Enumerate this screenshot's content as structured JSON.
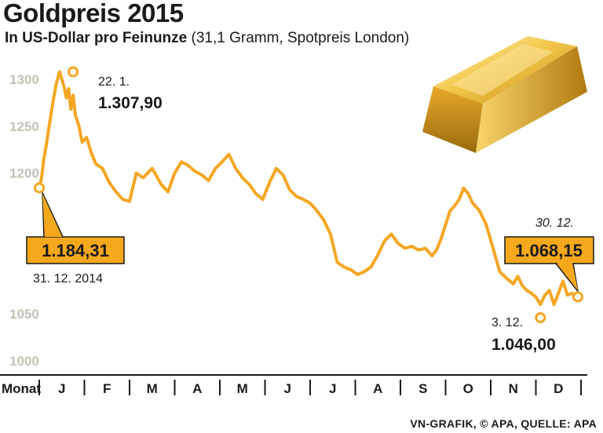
{
  "title": "Goldpreis 2015",
  "subtitle_bold": "In US-Dollar pro Feinunze",
  "subtitle_rest": "(31,1 Gramm, Spotpreis London)",
  "source": "VN-GRAFIK, © APA, QUELLE: APA",
  "colors": {
    "line": "#f5a623",
    "box": "#f6a81c",
    "text": "#1a1a1a",
    "grid": "#c3c3b4"
  },
  "chart_data": {
    "type": "line",
    "title": "Goldpreis 2015",
    "ylabel": "US-Dollar pro Feinunze",
    "xlabel": "Monat",
    "x_axis_label": "Monat",
    "ylim": [
      1000,
      1320
    ],
    "yticks": [
      1000,
      1050,
      1200,
      1250,
      1300
    ],
    "categories": [
      "J",
      "F",
      "M",
      "A",
      "M",
      "J",
      "J",
      "A",
      "S",
      "O",
      "N",
      "D"
    ],
    "series": [
      {
        "name": "Goldpreis",
        "x": [
          0,
          0.05,
          0.1,
          0.15,
          0.22,
          0.3,
          0.38,
          0.45,
          0.55,
          0.6,
          0.65,
          0.7,
          0.75,
          0.8,
          0.88,
          0.95,
          1.05,
          1.15,
          1.25,
          1.4,
          1.55,
          1.7,
          1.85,
          2.0,
          2.15,
          2.3,
          2.5,
          2.7,
          2.85,
          3.0,
          3.15,
          3.3,
          3.45,
          3.6,
          3.75,
          3.9,
          4.05,
          4.2,
          4.35,
          4.5,
          4.65,
          4.8,
          4.95,
          5.1,
          5.25,
          5.4,
          5.55,
          5.7,
          5.85,
          6.0,
          6.15,
          6.3,
          6.45,
          6.6,
          6.75,
          6.9,
          7.05,
          7.2,
          7.35,
          7.5,
          7.65,
          7.8,
          7.95,
          8.1,
          8.25,
          8.4,
          8.55,
          8.7,
          8.8,
          8.9,
          9.0,
          9.1,
          9.2,
          9.3,
          9.4,
          9.5,
          9.6,
          9.75,
          9.9,
          10.05,
          10.2,
          10.35,
          10.5,
          10.6,
          10.7,
          10.8,
          10.9,
          11.0,
          11.1,
          11.2,
          11.3,
          11.4,
          11.5,
          11.6,
          11.7,
          11.8,
          11.93
        ],
        "values": [
          1184.31,
          1195,
          1215,
          1228,
          1250,
          1275,
          1296,
          1307.9,
          1292,
          1280,
          1290,
          1268,
          1283,
          1262,
          1250,
          1233,
          1238,
          1222,
          1210,
          1205,
          1190,
          1180,
          1172,
          1170,
          1200,
          1195,
          1205,
          1188,
          1180,
          1200,
          1212,
          1208,
          1202,
          1198,
          1192,
          1205,
          1212,
          1220,
          1205,
          1195,
          1188,
          1178,
          1172,
          1190,
          1205,
          1198,
          1182,
          1175,
          1172,
          1168,
          1160,
          1150,
          1135,
          1105,
          1100,
          1097,
          1092,
          1095,
          1100,
          1113,
          1128,
          1135,
          1125,
          1120,
          1122,
          1118,
          1120,
          1112,
          1118,
          1130,
          1145,
          1160,
          1165,
          1172,
          1184,
          1178,
          1168,
          1160,
          1145,
          1120,
          1095,
          1088,
          1082,
          1090,
          1080,
          1075,
          1072,
          1068,
          1060,
          1070,
          1075,
          1060,
          1072,
          1085,
          1070,
          1072,
          1068.15
        ]
      }
    ],
    "annotations": {
      "start": {
        "date": "31. 12. 2014",
        "value": "1.184,31",
        "x": 0,
        "y": 1184.31
      },
      "max": {
        "date": "22. 1.",
        "value": "1.307,90",
        "x": 0.75,
        "y": 1307.9
      },
      "min": {
        "date": "3. 12.",
        "value": "1.046,00",
        "x": 11.1,
        "y": 1046.0
      },
      "end": {
        "date": "30. 12.",
        "value": "1.068,15",
        "x": 11.93,
        "y": 1068.15
      }
    }
  }
}
